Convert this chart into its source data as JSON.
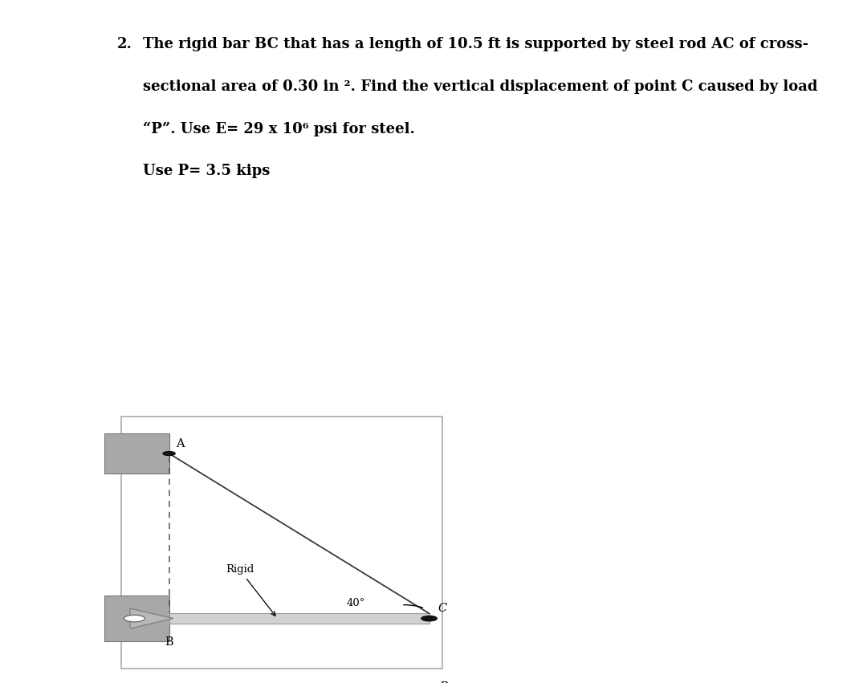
{
  "page_bg_top": "#ffffff",
  "page_bg_divider": "#d0d0d0",
  "page_bg_bottom": "#ffffff",
  "wall_color": "#a8a8a8",
  "bar_color": "#d2d2d2",
  "bar_edge": "#999999",
  "line_color": "#3a3a3a",
  "dashed_color": "#555555",
  "dot_color": "#111111",
  "box_edge": "#aaaaaa",
  "title_num": "2.",
  "line1": "The rigid bar BC that has a length of 10.5 ft is supported by steel rod AC of cross-",
  "line2": "sectional area of 0.30 in ². Find the vertical displacement of point C caused by load",
  "line3": "“P”. Use E= 29 x 10⁶ psi for steel.",
  "line4": "Use P= 3.5 kips",
  "text_fontsize": 13,
  "label_fontsize": 10.5
}
